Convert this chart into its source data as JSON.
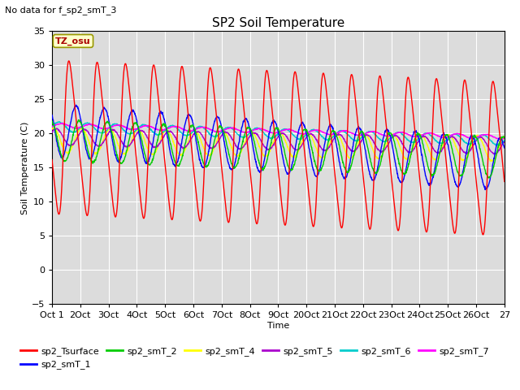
{
  "title": "SP2 Soil Temperature",
  "subtitle": "No data for f_sp2_smT_3",
  "xlabel": "Time",
  "ylabel": "Soil Temperature (C)",
  "ylim": [
    -5,
    35
  ],
  "tz_label": "TZ_osu",
  "x_tick_labels": [
    "Oct 1",
    "2Oct",
    "3Oct",
    "4Oct",
    "5Oct",
    "6Oct",
    "7Oct",
    "8Oct",
    "9Oct",
    "20Oct",
    "21Oct",
    "22Oct",
    "23Oct",
    "24Oct",
    "25Oct",
    "26Oct",
    "27"
  ],
  "legend_entries": [
    {
      "label": "sp2_Tsurface",
      "color": "#ff0000"
    },
    {
      "label": "sp2_smT_1",
      "color": "#0000ff"
    },
    {
      "label": "sp2_smT_2",
      "color": "#00cc00"
    },
    {
      "label": "sp2_smT_4",
      "color": "#ffff00"
    },
    {
      "label": "sp2_smT_5",
      "color": "#aa00cc"
    },
    {
      "label": "sp2_smT_6",
      "color": "#00cccc"
    },
    {
      "label": "sp2_smT_7",
      "color": "#ff00ff"
    }
  ],
  "bg_color": "#dcdcdc",
  "n_days": 16,
  "yticks": [
    -5,
    0,
    5,
    10,
    15,
    20,
    25,
    30,
    35
  ]
}
